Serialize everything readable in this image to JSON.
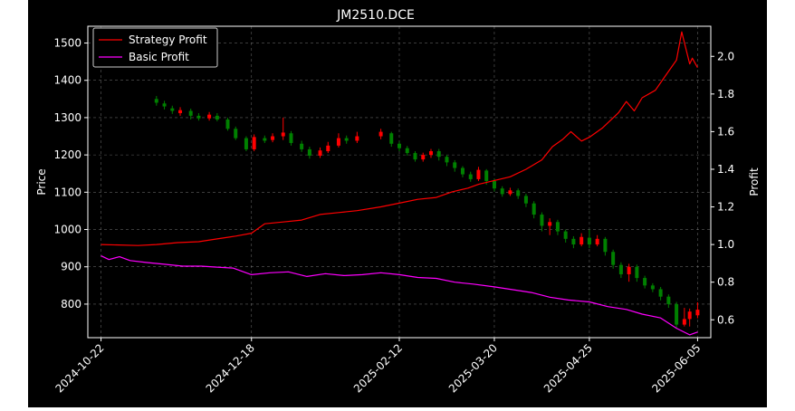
{
  "chart_data": {
    "type": "candlestick+line",
    "title": "JM2510.DCE",
    "xlabel": "",
    "ylabel_left": "Price",
    "ylabel_right": "Profit",
    "background": "#000000",
    "grid": true,
    "legend_position": "upper-left",
    "x_range": [
      "2024-10-17",
      "2025-06-10"
    ],
    "x_ticks": [
      "2024-10-22",
      "2024-12-18",
      "2025-02-12",
      "2025-03-20",
      "2025-04-25",
      "2025-06-05"
    ],
    "y_left": {
      "ylim": [
        710,
        1545
      ],
      "ticks": [
        800,
        900,
        1000,
        1100,
        1200,
        1300,
        1400,
        1500
      ]
    },
    "y_right": {
      "ylim": [
        0.505,
        2.16
      ],
      "ticks": [
        0.6,
        0.8,
        1.0,
        1.2,
        1.4,
        1.6,
        1.8,
        2.0
      ]
    },
    "candle_colors": {
      "up": "#ff0000",
      "down": "#008000"
    },
    "series": [
      {
        "name": "Strategy Profit",
        "axis": "right",
        "color": "#ff0000",
        "points": [
          [
            "2024-10-22",
            1.0
          ],
          [
            "2024-11-05",
            0.995
          ],
          [
            "2024-11-12",
            1.0
          ],
          [
            "2024-11-20",
            1.01
          ],
          [
            "2024-11-28",
            1.015
          ],
          [
            "2024-12-05",
            1.03
          ],
          [
            "2024-12-12",
            1.045
          ],
          [
            "2024-12-18",
            1.06
          ],
          [
            "2024-12-23",
            1.11
          ],
          [
            "2024-12-30",
            1.12
          ],
          [
            "2025-01-06",
            1.13
          ],
          [
            "2025-01-13",
            1.16
          ],
          [
            "2025-01-20",
            1.17
          ],
          [
            "2025-01-27",
            1.18
          ],
          [
            "2025-02-05",
            1.2
          ],
          [
            "2025-02-12",
            1.22
          ],
          [
            "2025-02-19",
            1.24
          ],
          [
            "2025-02-26",
            1.25
          ],
          [
            "2025-03-04",
            1.28
          ],
          [
            "2025-03-10",
            1.3
          ],
          [
            "2025-03-14",
            1.32
          ],
          [
            "2025-03-20",
            1.34
          ],
          [
            "2025-03-26",
            1.36
          ],
          [
            "2025-04-01",
            1.4
          ],
          [
            "2025-04-07",
            1.45
          ],
          [
            "2025-04-11",
            1.52
          ],
          [
            "2025-04-15",
            1.56
          ],
          [
            "2025-04-18",
            1.6
          ],
          [
            "2025-04-22",
            1.55
          ],
          [
            "2025-04-25",
            1.57
          ],
          [
            "2025-04-30",
            1.62
          ],
          [
            "2025-05-06",
            1.7
          ],
          [
            "2025-05-09",
            1.76
          ],
          [
            "2025-05-12",
            1.71
          ],
          [
            "2025-05-15",
            1.78
          ],
          [
            "2025-05-20",
            1.82
          ],
          [
            "2025-05-24",
            1.9
          ],
          [
            "2025-05-28",
            1.98
          ],
          [
            "2025-05-30",
            2.13
          ],
          [
            "2025-06-02",
            1.96
          ],
          [
            "2025-06-03",
            1.99
          ],
          [
            "2025-06-05",
            1.94
          ]
        ]
      },
      {
        "name": "Basic Profit",
        "axis": "right",
        "color": "#ff00ff",
        "points": [
          [
            "2024-10-22",
            0.94
          ],
          [
            "2024-10-25",
            0.92
          ],
          [
            "2024-10-29",
            0.935
          ],
          [
            "2024-11-02",
            0.915
          ],
          [
            "2024-11-08",
            0.905
          ],
          [
            "2024-11-15",
            0.895
          ],
          [
            "2024-11-22",
            0.885
          ],
          [
            "2024-11-29",
            0.885
          ],
          [
            "2024-12-05",
            0.88
          ],
          [
            "2024-12-11",
            0.875
          ],
          [
            "2024-12-18",
            0.84
          ],
          [
            "2024-12-25",
            0.85
          ],
          [
            "2025-01-01",
            0.855
          ],
          [
            "2025-01-08",
            0.83
          ],
          [
            "2025-01-15",
            0.845
          ],
          [
            "2025-01-22",
            0.835
          ],
          [
            "2025-01-29",
            0.84
          ],
          [
            "2025-02-05",
            0.85
          ],
          [
            "2025-02-12",
            0.84
          ],
          [
            "2025-02-19",
            0.825
          ],
          [
            "2025-02-26",
            0.82
          ],
          [
            "2025-03-05",
            0.8
          ],
          [
            "2025-03-12",
            0.79
          ],
          [
            "2025-03-20",
            0.775
          ],
          [
            "2025-03-27",
            0.76
          ],
          [
            "2025-04-03",
            0.745
          ],
          [
            "2025-04-10",
            0.72
          ],
          [
            "2025-04-17",
            0.705
          ],
          [
            "2025-04-25",
            0.695
          ],
          [
            "2025-05-02",
            0.67
          ],
          [
            "2025-05-09",
            0.655
          ],
          [
            "2025-05-15",
            0.63
          ],
          [
            "2025-05-22",
            0.61
          ],
          [
            "2025-05-28",
            0.555
          ],
          [
            "2025-06-02",
            0.52
          ],
          [
            "2025-06-05",
            0.535
          ]
        ]
      }
    ],
    "candles": [
      [
        "2024-11-12",
        1350,
        1340,
        1358,
        1332
      ],
      [
        "2024-11-15",
        1338,
        1330,
        1345,
        1322
      ],
      [
        "2024-11-18",
        1325,
        1318,
        1332,
        1310
      ],
      [
        "2024-11-21",
        1312,
        1320,
        1328,
        1305
      ],
      [
        "2024-11-25",
        1318,
        1305,
        1324,
        1295
      ],
      [
        "2024-11-28",
        1305,
        1298,
        1312,
        1292
      ],
      [
        "2024-12-02",
        1298,
        1308,
        1315,
        1292
      ],
      [
        "2024-12-05",
        1305,
        1295,
        1312,
        1290
      ],
      [
        "2024-12-09",
        1295,
        1270,
        1300,
        1265
      ],
      [
        "2024-12-12",
        1270,
        1245,
        1276,
        1240
      ],
      [
        "2024-12-16",
        1245,
        1215,
        1250,
        1210
      ],
      [
        "2024-12-19",
        1215,
        1248,
        1255,
        1210
      ],
      [
        "2024-12-23",
        1245,
        1238,
        1252,
        1232
      ],
      [
        "2024-12-26",
        1240,
        1250,
        1258,
        1234
      ],
      [
        "2024-12-30",
        1250,
        1260,
        1300,
        1240
      ],
      [
        "2025-01-02",
        1258,
        1232,
        1264,
        1225
      ],
      [
        "2025-01-06",
        1230,
        1215,
        1238,
        1208
      ],
      [
        "2025-01-09",
        1215,
        1198,
        1222,
        1190
      ],
      [
        "2025-01-13",
        1198,
        1212,
        1220,
        1192
      ],
      [
        "2025-01-16",
        1210,
        1225,
        1235,
        1205
      ],
      [
        "2025-01-20",
        1225,
        1245,
        1258,
        1220
      ],
      [
        "2025-01-23",
        1245,
        1238,
        1252,
        1230
      ],
      [
        "2025-01-27",
        1238,
        1250,
        1262,
        1232
      ],
      [
        "2025-02-05",
        1250,
        1262,
        1270,
        1242
      ],
      [
        "2025-02-09",
        1258,
        1230,
        1262,
        1222
      ],
      [
        "2025-02-12",
        1230,
        1218,
        1236,
        1210
      ],
      [
        "2025-02-15",
        1218,
        1205,
        1224,
        1198
      ],
      [
        "2025-02-18",
        1205,
        1188,
        1210,
        1182
      ],
      [
        "2025-02-21",
        1188,
        1200,
        1206,
        1182
      ],
      [
        "2025-02-24",
        1200,
        1210,
        1216,
        1192
      ],
      [
        "2025-02-27",
        1210,
        1195,
        1216,
        1185
      ],
      [
        "2025-03-02",
        1195,
        1180,
        1200,
        1170
      ],
      [
        "2025-03-05",
        1180,
        1165,
        1186,
        1155
      ],
      [
        "2025-03-08",
        1165,
        1148,
        1170,
        1140
      ],
      [
        "2025-03-11",
        1148,
        1135,
        1155,
        1128
      ],
      [
        "2025-03-14",
        1135,
        1160,
        1168,
        1130
      ],
      [
        "2025-03-17",
        1158,
        1130,
        1162,
        1120
      ],
      [
        "2025-03-20",
        1130,
        1110,
        1136,
        1102
      ],
      [
        "2025-03-23",
        1110,
        1095,
        1116,
        1088
      ],
      [
        "2025-03-26",
        1095,
        1105,
        1112,
        1090
      ],
      [
        "2025-03-29",
        1105,
        1090,
        1110,
        1082
      ],
      [
        "2025-04-01",
        1090,
        1070,
        1096,
        1060
      ],
      [
        "2025-04-04",
        1070,
        1040,
        1076,
        1030
      ],
      [
        "2025-04-07",
        1040,
        1010,
        1046,
        995
      ],
      [
        "2025-04-10",
        1010,
        1020,
        1030,
        985
      ],
      [
        "2025-04-13",
        1020,
        995,
        1026,
        985
      ],
      [
        "2025-04-16",
        995,
        975,
        1000,
        965
      ],
      [
        "2025-04-19",
        975,
        960,
        982,
        950
      ],
      [
        "2025-04-22",
        960,
        980,
        990,
        955
      ],
      [
        "2025-04-25",
        978,
        960,
        1000,
        950
      ],
      [
        "2025-04-28",
        960,
        975,
        985,
        955
      ],
      [
        "2025-05-01",
        975,
        940,
        980,
        930
      ],
      [
        "2025-05-04",
        940,
        905,
        946,
        895
      ],
      [
        "2025-05-07",
        905,
        880,
        912,
        870
      ],
      [
        "2025-05-10",
        880,
        900,
        908,
        860
      ],
      [
        "2025-05-13",
        900,
        870,
        906,
        860
      ],
      [
        "2025-05-16",
        870,
        850,
        876,
        842
      ],
      [
        "2025-05-19",
        850,
        840,
        856,
        832
      ],
      [
        "2025-05-22",
        840,
        820,
        846,
        810
      ],
      [
        "2025-05-25",
        820,
        800,
        826,
        790
      ],
      [
        "2025-05-28",
        800,
        745,
        806,
        735
      ],
      [
        "2025-05-31",
        745,
        760,
        790,
        740
      ],
      [
        "2025-06-02",
        760,
        780,
        788,
        740
      ],
      [
        "2025-06-05",
        770,
        785,
        805,
        762
      ]
    ]
  }
}
